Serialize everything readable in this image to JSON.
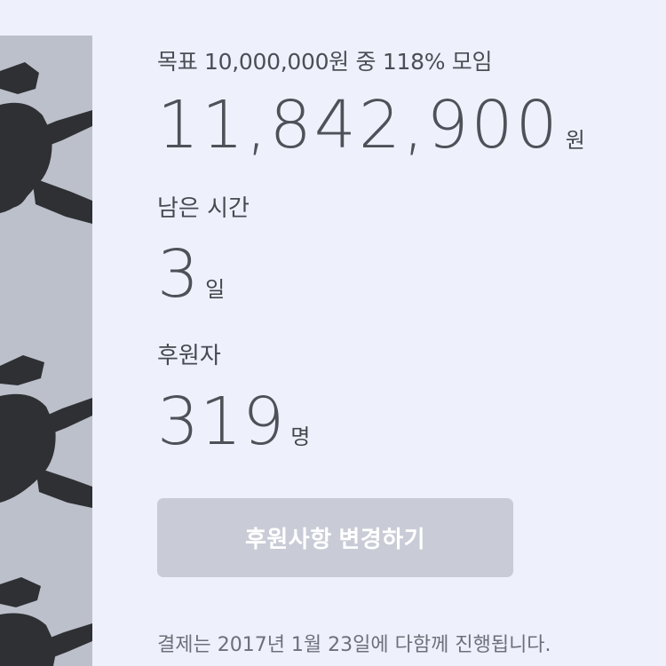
{
  "funding": {
    "goal_summary": "목표 10,000,000원 중 118% 모임",
    "amount_value": "11,842,900",
    "amount_unit": "원",
    "time_label": "남은 시간",
    "time_value": "3",
    "time_unit": "일",
    "backers_label": "후원자",
    "backers_value": "319",
    "backers_unit": "명"
  },
  "actions": {
    "change_pledge_label": "후원사항 변경하기"
  },
  "notes": {
    "payment_date": "결제는 2017년 1월 23일에 다함께 진행됩니다."
  },
  "colors": {
    "page_background": "#eef1fc",
    "button_background": "#c9ccd6",
    "side_image_background": "#bcc0cb",
    "side_image_figures": "#2f3033"
  }
}
